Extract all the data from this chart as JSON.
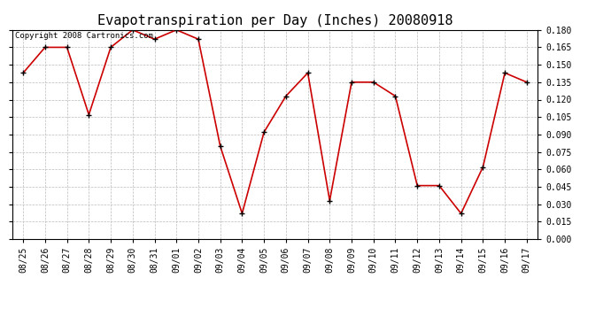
{
  "title": "Evapotranspiration per Day (Inches) 20080918",
  "copyright_text": "Copyright 2008 Cartronics.com",
  "x_labels": [
    "08/25",
    "08/26",
    "08/27",
    "08/28",
    "08/29",
    "08/30",
    "08/31",
    "09/01",
    "09/02",
    "09/03",
    "09/04",
    "09/05",
    "09/06",
    "09/07",
    "09/08",
    "09/09",
    "09/10",
    "09/11",
    "09/12",
    "09/13",
    "09/14",
    "09/15",
    "09/16",
    "09/17"
  ],
  "y_values": [
    0.143,
    0.165,
    0.165,
    0.107,
    0.165,
    0.18,
    0.172,
    0.18,
    0.172,
    0.08,
    0.022,
    0.092,
    0.123,
    0.143,
    0.033,
    0.135,
    0.135,
    0.123,
    0.046,
    0.046,
    0.022,
    0.062,
    0.143,
    0.135
  ],
  "line_color": "#cc0000",
  "marker_color": "#000000",
  "bg_color": "#ffffff",
  "grid_color": "#bbbbbb",
  "y_min": 0.0,
  "y_max": 0.18,
  "y_tick_step": 0.015,
  "title_fontsize": 11,
  "copyright_fontsize": 6.5,
  "tick_fontsize": 7,
  "figwidth": 6.9,
  "figheight": 3.75,
  "dpi": 100
}
